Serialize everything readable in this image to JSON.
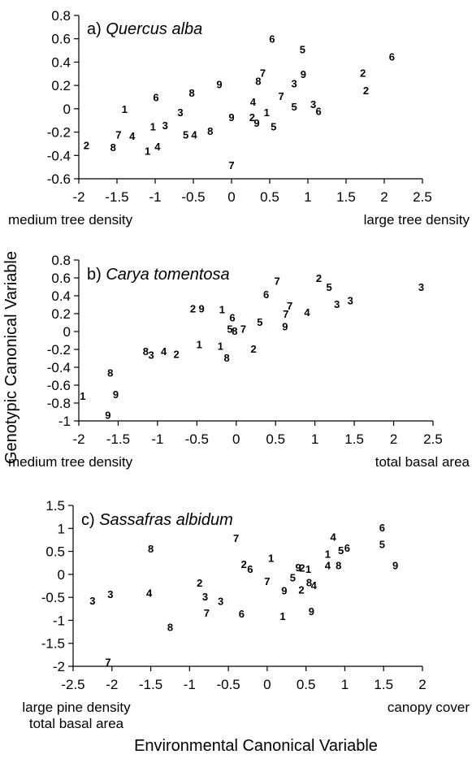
{
  "figure": {
    "y_label": "Genotypic Canonical Variable",
    "x_label": "Environmental Canonical Variable"
  },
  "chart_data": [
    {
      "type": "scatter",
      "panel_letter": "a)",
      "title": "Quercus alba",
      "xlim": [
        -2,
        2.5
      ],
      "ylim": [
        -0.6,
        0.8
      ],
      "xticks": [
        -2,
        -1.5,
        -1,
        -0.5,
        0,
        0.5,
        1,
        1.5,
        2,
        2.5
      ],
      "yticks": [
        -0.6,
        -0.4,
        -0.2,
        0,
        0.2,
        0.4,
        0.6,
        0.8
      ],
      "xlabel_left": "medium tree density",
      "xlabel_right": "large tree density",
      "points": [
        {
          "x": -1.9,
          "y": -0.31,
          "label": "2"
        },
        {
          "x": -1.55,
          "y": -0.33,
          "label": "8"
        },
        {
          "x": -1.48,
          "y": -0.22,
          "label": "7"
        },
        {
          "x": -1.3,
          "y": -0.23,
          "label": "4"
        },
        {
          "x": -1.4,
          "y": 0.0,
          "label": "1"
        },
        {
          "x": -1.1,
          "y": -0.36,
          "label": "1"
        },
        {
          "x": -0.97,
          "y": -0.32,
          "label": "4"
        },
        {
          "x": -1.03,
          "y": -0.15,
          "label": "1"
        },
        {
          "x": -0.87,
          "y": -0.14,
          "label": "3"
        },
        {
          "x": -0.99,
          "y": 0.1,
          "label": "6"
        },
        {
          "x": -0.67,
          "y": -0.03,
          "label": "3"
        },
        {
          "x": -0.6,
          "y": -0.22,
          "label": "5"
        },
        {
          "x": -0.49,
          "y": -0.22,
          "label": "4"
        },
        {
          "x": -0.52,
          "y": 0.14,
          "label": "8"
        },
        {
          "x": -0.28,
          "y": -0.19,
          "label": "8"
        },
        {
          "x": -0.16,
          "y": 0.21,
          "label": "9"
        },
        {
          "x": 0.0,
          "y": -0.07,
          "label": "9"
        },
        {
          "x": 0.0,
          "y": -0.48,
          "label": "7"
        },
        {
          "x": 0.27,
          "y": -0.07,
          "label": "2"
        },
        {
          "x": 0.33,
          "y": -0.12,
          "label": "9"
        },
        {
          "x": 0.28,
          "y": 0.06,
          "label": "4"
        },
        {
          "x": 0.46,
          "y": -0.03,
          "label": "1"
        },
        {
          "x": 0.55,
          "y": -0.15,
          "label": "5"
        },
        {
          "x": 0.35,
          "y": 0.24,
          "label": "8"
        },
        {
          "x": 0.41,
          "y": 0.31,
          "label": "7"
        },
        {
          "x": 0.53,
          "y": 0.6,
          "label": "6"
        },
        {
          "x": 0.65,
          "y": 0.11,
          "label": "7"
        },
        {
          "x": 0.82,
          "y": 0.02,
          "label": "5"
        },
        {
          "x": 0.82,
          "y": 0.22,
          "label": "3"
        },
        {
          "x": 0.94,
          "y": 0.3,
          "label": "9"
        },
        {
          "x": 0.93,
          "y": 0.51,
          "label": "5"
        },
        {
          "x": 1.07,
          "y": 0.04,
          "label": "3"
        },
        {
          "x": 1.14,
          "y": -0.02,
          "label": "6"
        },
        {
          "x": 1.72,
          "y": 0.31,
          "label": "2"
        },
        {
          "x": 1.76,
          "y": 0.16,
          "label": "2"
        },
        {
          "x": 2.1,
          "y": 0.45,
          "label": "6"
        }
      ]
    },
    {
      "type": "scatter",
      "panel_letter": "b)",
      "title": "Carya tomentosa",
      "xlim": [
        -2,
        2.5
      ],
      "ylim": [
        -1,
        0.8
      ],
      "xticks": [
        -2,
        -1.5,
        -1,
        -0.5,
        0,
        0.5,
        1,
        1.5,
        2,
        2.5
      ],
      "yticks": [
        -1,
        -0.8,
        -0.6,
        -0.4,
        -0.2,
        0,
        0.2,
        0.4,
        0.6,
        0.8
      ],
      "xlabel_left": "medium tree density",
      "xlabel_right": "total basal area",
      "points": [
        {
          "x": -1.95,
          "y": -0.72,
          "label": "1"
        },
        {
          "x": -1.63,
          "y": -0.93,
          "label": "9"
        },
        {
          "x": -1.53,
          "y": -0.7,
          "label": "9"
        },
        {
          "x": -1.6,
          "y": -0.46,
          "label": "8"
        },
        {
          "x": -1.15,
          "y": -0.22,
          "label": "8"
        },
        {
          "x": -1.08,
          "y": -0.26,
          "label": "3"
        },
        {
          "x": -0.92,
          "y": -0.22,
          "label": "4"
        },
        {
          "x": -0.76,
          "y": -0.25,
          "label": "2"
        },
        {
          "x": -0.47,
          "y": -0.14,
          "label": "1"
        },
        {
          "x": -0.55,
          "y": 0.26,
          "label": "2"
        },
        {
          "x": -0.44,
          "y": 0.26,
          "label": "9"
        },
        {
          "x": -0.18,
          "y": 0.25,
          "label": "1"
        },
        {
          "x": -0.2,
          "y": -0.16,
          "label": "1"
        },
        {
          "x": -0.12,
          "y": -0.29,
          "label": "8"
        },
        {
          "x": -0.08,
          "y": 0.03,
          "label": "5"
        },
        {
          "x": -0.05,
          "y": 0.16,
          "label": "6"
        },
        {
          "x": -0.02,
          "y": 0.01,
          "label": "8"
        },
        {
          "x": 0.09,
          "y": 0.03,
          "label": "7"
        },
        {
          "x": 0.22,
          "y": -0.19,
          "label": "2"
        },
        {
          "x": 0.3,
          "y": 0.11,
          "label": "5"
        },
        {
          "x": 0.38,
          "y": 0.42,
          "label": "6"
        },
        {
          "x": 0.52,
          "y": 0.57,
          "label": "7"
        },
        {
          "x": 0.68,
          "y": 0.29,
          "label": "7"
        },
        {
          "x": 0.63,
          "y": 0.2,
          "label": "7"
        },
        {
          "x": 0.62,
          "y": 0.06,
          "label": "9"
        },
        {
          "x": 0.9,
          "y": 0.22,
          "label": "4"
        },
        {
          "x": 1.05,
          "y": 0.6,
          "label": "2"
        },
        {
          "x": 1.18,
          "y": 0.5,
          "label": "5"
        },
        {
          "x": 1.28,
          "y": 0.31,
          "label": "3"
        },
        {
          "x": 1.45,
          "y": 0.35,
          "label": "3"
        },
        {
          "x": 2.35,
          "y": 0.5,
          "label": "3"
        }
      ]
    },
    {
      "type": "scatter",
      "panel_letter": "c)",
      "title": "Sassafras albidum",
      "xlim": [
        -2.5,
        2
      ],
      "ylim": [
        -2,
        1.5
      ],
      "xticks": [
        -2.5,
        -2,
        -1.5,
        -1,
        -0.5,
        0,
        0.5,
        1,
        1.5,
        2
      ],
      "yticks": [
        -2,
        -1.5,
        -1,
        -0.5,
        0,
        0.5,
        1,
        1.5
      ],
      "xlabel_left": "large pine density\ntotal basal area",
      "xlabel_right": "canopy cover",
      "points": [
        {
          "x": -2.05,
          "y": -1.9,
          "label": "7"
        },
        {
          "x": -2.25,
          "y": -0.57,
          "label": "3"
        },
        {
          "x": -2.02,
          "y": -0.43,
          "label": "3"
        },
        {
          "x": -1.52,
          "y": -0.4,
          "label": "4"
        },
        {
          "x": -1.5,
          "y": 0.56,
          "label": "8"
        },
        {
          "x": -1.25,
          "y": -1.14,
          "label": "8"
        },
        {
          "x": -0.87,
          "y": -0.18,
          "label": "2"
        },
        {
          "x": -0.8,
          "y": -0.48,
          "label": "3"
        },
        {
          "x": -0.78,
          "y": -0.83,
          "label": "7"
        },
        {
          "x": -0.6,
          "y": -0.58,
          "label": "3"
        },
        {
          "x": -0.33,
          "y": -0.85,
          "label": "6"
        },
        {
          "x": -0.3,
          "y": 0.23,
          "label": "2"
        },
        {
          "x": -0.22,
          "y": 0.12,
          "label": "6"
        },
        {
          "x": -0.4,
          "y": 0.79,
          "label": "7"
        },
        {
          "x": 0.0,
          "y": -0.14,
          "label": "7"
        },
        {
          "x": 0.05,
          "y": 0.36,
          "label": "1"
        },
        {
          "x": 0.2,
          "y": -0.9,
          "label": "1"
        },
        {
          "x": 0.22,
          "y": -0.35,
          "label": "9"
        },
        {
          "x": 0.33,
          "y": -0.06,
          "label": "5"
        },
        {
          "x": 0.4,
          "y": 0.16,
          "label": "9"
        },
        {
          "x": 0.45,
          "y": 0.15,
          "label": "2"
        },
        {
          "x": 0.53,
          "y": 0.12,
          "label": "1"
        },
        {
          "x": 0.44,
          "y": -0.33,
          "label": "2"
        },
        {
          "x": 0.54,
          "y": -0.17,
          "label": "8"
        },
        {
          "x": 0.6,
          "y": -0.23,
          "label": "4"
        },
        {
          "x": 0.57,
          "y": -0.8,
          "label": "9"
        },
        {
          "x": 0.78,
          "y": 0.2,
          "label": "4"
        },
        {
          "x": 0.78,
          "y": 0.45,
          "label": "1"
        },
        {
          "x": 0.85,
          "y": 0.82,
          "label": "4"
        },
        {
          "x": 0.92,
          "y": 0.2,
          "label": "8"
        },
        {
          "x": 0.95,
          "y": 0.53,
          "label": "5"
        },
        {
          "x": 1.03,
          "y": 0.58,
          "label": "6"
        },
        {
          "x": 1.48,
          "y": 0.66,
          "label": "5"
        },
        {
          "x": 1.48,
          "y": 1.02,
          "label": "6"
        },
        {
          "x": 1.65,
          "y": 0.2,
          "label": "9"
        }
      ]
    }
  ]
}
